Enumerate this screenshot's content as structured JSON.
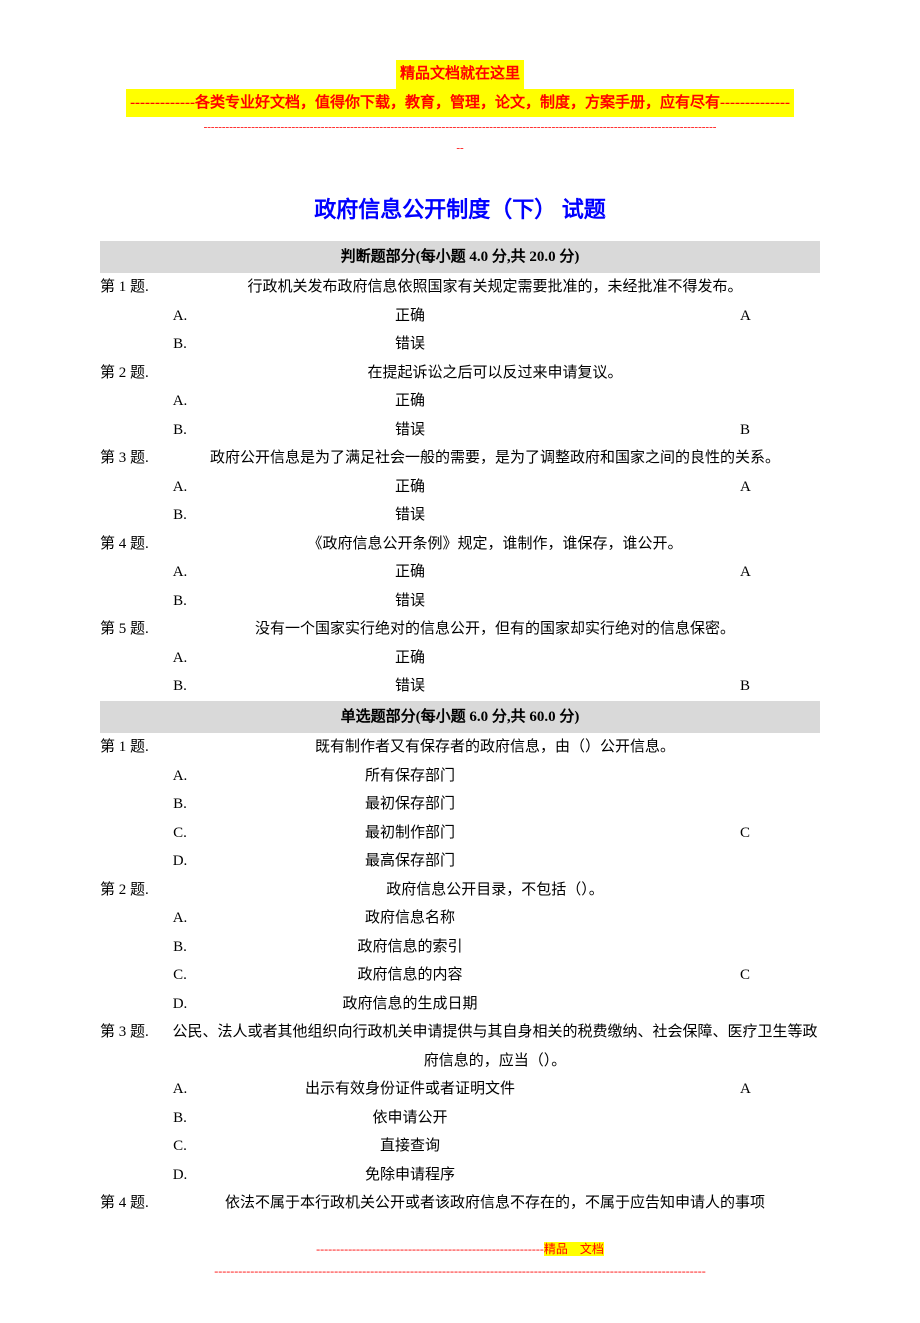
{
  "header": {
    "line1": "精品文档就在这里",
    "line2": "-------------各类专业好文档，值得你下载，教育，管理，论文，制度，方案手册，应有尽有--------------",
    "dashes_top": "--------------------------------------------------------------------------------------------------------------------------------------------",
    "dashes_bottom": "--"
  },
  "title": "政府信息公开制度（下） 试题",
  "section1": {
    "header": "判断题部分(每小题 4.0 分,共 20.0 分)",
    "questions": [
      {
        "num": "第 1 题.",
        "text": "行政机关发布政府信息依照国家有关规定需要批准的，未经批准不得发布。",
        "options": [
          {
            "label": "A.",
            "text": "正确",
            "answer": "A"
          },
          {
            "label": "B.",
            "text": "错误",
            "answer": ""
          }
        ]
      },
      {
        "num": "第 2 题.",
        "text": "在提起诉讼之后可以反过来申请复议。",
        "options": [
          {
            "label": "A.",
            "text": "正确",
            "answer": ""
          },
          {
            "label": "B.",
            "text": "错误",
            "answer": "B"
          }
        ]
      },
      {
        "num": "第 3 题.",
        "text": "政府公开信息是为了满足社会一般的需要，是为了调整政府和国家之间的良性的关系。",
        "options": [
          {
            "label": "A.",
            "text": "正确",
            "answer": "A"
          },
          {
            "label": "B.",
            "text": "错误",
            "answer": ""
          }
        ]
      },
      {
        "num": "第 4 题.",
        "text": "《政府信息公开条例》规定，谁制作，谁保存，谁公开。",
        "options": [
          {
            "label": "A.",
            "text": "正确",
            "answer": "A"
          },
          {
            "label": "B.",
            "text": "错误",
            "answer": ""
          }
        ]
      },
      {
        "num": "第 5 题.",
        "text": "没有一个国家实行绝对的信息公开，但有的国家却实行绝对的信息保密。",
        "options": [
          {
            "label": "A.",
            "text": "正确",
            "answer": ""
          },
          {
            "label": "B.",
            "text": "错误",
            "answer": "B"
          }
        ]
      }
    ]
  },
  "section2": {
    "header": "单选题部分(每小题 6.0 分,共 60.0 分)",
    "questions": [
      {
        "num": "第 1 题.",
        "text": "既有制作者又有保存者的政府信息，由（）公开信息。",
        "options": [
          {
            "label": "A.",
            "text": "所有保存部门",
            "answer": ""
          },
          {
            "label": "B.",
            "text": "最初保存部门",
            "answer": ""
          },
          {
            "label": "C.",
            "text": "最初制作部门",
            "answer": "C"
          },
          {
            "label": "D.",
            "text": "最高保存部门",
            "answer": ""
          }
        ]
      },
      {
        "num": "第 2 题.",
        "text": "政府信息公开目录，不包括（）。",
        "options": [
          {
            "label": "A.",
            "text": "政府信息名称",
            "answer": ""
          },
          {
            "label": "B.",
            "text": "政府信息的索引",
            "answer": ""
          },
          {
            "label": "C.",
            "text": "政府信息的内容",
            "answer": "C"
          },
          {
            "label": "D.",
            "text": "政府信息的生成日期",
            "answer": ""
          }
        ]
      },
      {
        "num": "第 3 题.",
        "text": "公民、法人或者其他组织向行政机关申请提供与其自身相关的税费缴纳、社会保障、医疗卫生等政府信息的，应当（）。",
        "options": [
          {
            "label": "A.",
            "text": "出示有效身份证件或者证明文件",
            "answer": "A"
          },
          {
            "label": "B.",
            "text": "依申请公开",
            "answer": ""
          },
          {
            "label": "C.",
            "text": "直接查询",
            "answer": ""
          },
          {
            "label": "D.",
            "text": "免除申请程序",
            "answer": ""
          }
        ]
      },
      {
        "num": "第 4 题.",
        "text": "依法不属于本行政机关公开或者该政府信息不存在的，不属于应告知申请人的事项",
        "options": []
      }
    ]
  },
  "footer": {
    "dashes": "---------------------------------------------------------",
    "text": "精品　文档",
    "dashes2": "---------------------------------------------------------------------------------------------------------------------------"
  },
  "colors": {
    "title": "#0000ff",
    "highlight_bg": "#ffff00",
    "highlight_fg": "#ff0000",
    "section_bg": "#d9d9d9",
    "text": "#000000"
  }
}
